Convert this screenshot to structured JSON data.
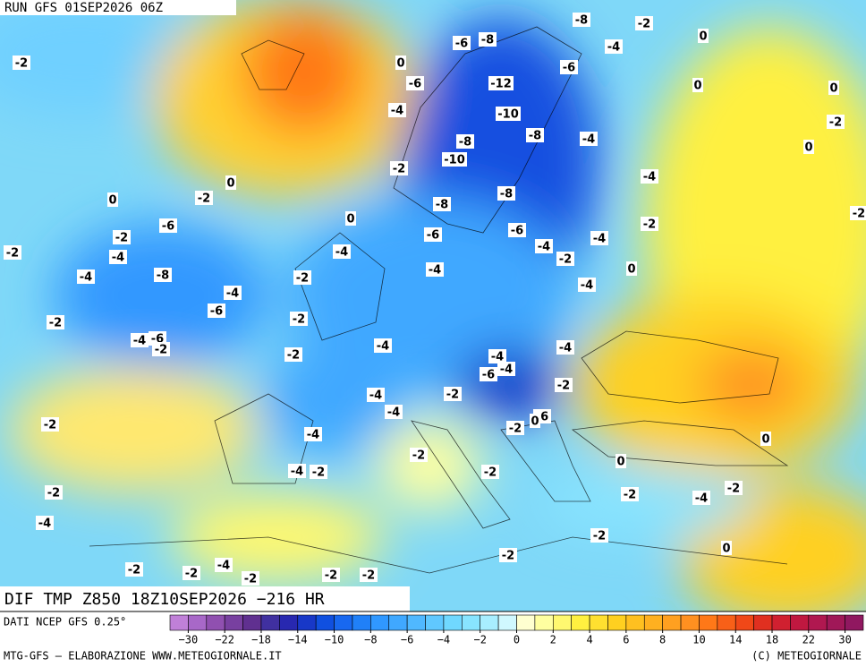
{
  "header": {
    "run": "RUN GFS 01SEP2026 06Z"
  },
  "map": {
    "title": "DIF TMP Z850 18Z10SEP2026 −216 HR",
    "labels": [
      -8,
      -2,
      0,
      -8,
      -6,
      -4,
      -2,
      0,
      -6,
      -6,
      -12,
      0,
      0,
      -4,
      -10,
      -2,
      -8,
      -8,
      -4,
      0,
      -10,
      -2,
      -4,
      0,
      -8,
      -2,
      0,
      -8,
      0,
      -6,
      -2,
      -2,
      -2,
      -6,
      -6,
      -4,
      -4,
      -2,
      -4,
      -4,
      -2,
      -4,
      0,
      -4,
      -8,
      -2,
      -4,
      -4,
      -6,
      -2,
      -2,
      -4,
      -6,
      -2,
      -4,
      -4,
      -2,
      -4,
      -6,
      -4,
      -2,
      -4,
      -2,
      -4,
      -6,
      0,
      -2,
      -2,
      -4,
      0,
      -2,
      0,
      -4,
      -2,
      -2,
      -2,
      -2,
      -2,
      -4,
      -4,
      -2,
      0,
      -2,
      -2,
      -2,
      -4,
      -2,
      -2,
      -2
    ]
  },
  "footer": {
    "source": "DATI NCEP GFS 0.25°",
    "credit": "MTG-GFS — ELABORAZIONE WWW.METEOGIORNALE.IT",
    "copyright": "(C) METEOGIORNALE"
  },
  "colorbar": {
    "bounds": [
      -34,
      -30,
      -26,
      -22,
      -20,
      -18,
      -16,
      -14,
      -12,
      -10,
      -9,
      -8,
      -7,
      -6,
      -5,
      -4,
      -3,
      -2,
      -1,
      0,
      1,
      2,
      3,
      4,
      5,
      6,
      7,
      8,
      9,
      10,
      12,
      14,
      16,
      18,
      20,
      22,
      26,
      30,
      34
    ],
    "colors": [
      "#c080d8",
      "#a868c8",
      "#9050b0",
      "#7840a0",
      "#603090",
      "#4030a0",
      "#2828b0",
      "#1838c8",
      "#1050e0",
      "#1868f0",
      "#2080f8",
      "#3098ff",
      "#40a8ff",
      "#50b8ff",
      "#60c8ff",
      "#70d8ff",
      "#88e4ff",
      "#a8eeff",
      "#d0f8ff",
      "#ffffd0",
      "#ffffa0",
      "#fff870",
      "#fff040",
      "#ffe030",
      "#ffd020",
      "#ffc020",
      "#ffb020",
      "#ffa020",
      "#ff9020",
      "#ff7818",
      "#f86018",
      "#f04818",
      "#e03020",
      "#d02030",
      "#c01840",
      "#b01850",
      "#a01858",
      "#901860"
    ],
    "ticks": [
      {
        "value": -30,
        "label": "−30"
      },
      {
        "value": -22,
        "label": "−22"
      },
      {
        "value": -18,
        "label": "−18"
      },
      {
        "value": -14,
        "label": "−14"
      },
      {
        "value": -10,
        "label": "−10"
      },
      {
        "value": -8,
        "label": "−8"
      },
      {
        "value": -6,
        "label": "−6"
      },
      {
        "value": -4,
        "label": "−4"
      },
      {
        "value": -2,
        "label": "−2"
      },
      0,
      2,
      4,
      6,
      8,
      10,
      14,
      18,
      22,
      30
    ]
  }
}
